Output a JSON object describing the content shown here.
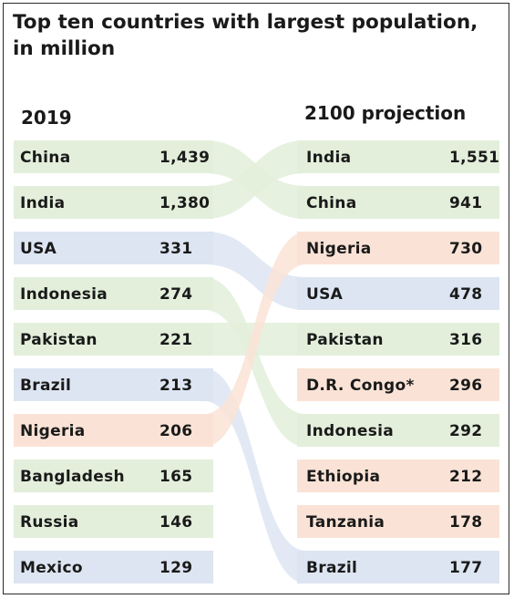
{
  "title": "Top ten countries with largest population, in million",
  "colors": {
    "green": "#e3efdb",
    "blue": "#dde5f2",
    "orange": "#fae3d6",
    "border": "#2b2b2b"
  },
  "chart_data": {
    "type": "bump",
    "title": "Top ten countries with largest population, in million",
    "unit": "million",
    "columns": [
      "2019",
      "2100 projection"
    ],
    "left": [
      {
        "country": "China",
        "value": 1439,
        "label": "1,439",
        "color": "green"
      },
      {
        "country": "India",
        "value": 1380,
        "label": "1,380",
        "color": "green"
      },
      {
        "country": "USA",
        "value": 331,
        "label": "331",
        "color": "blue"
      },
      {
        "country": "Indonesia",
        "value": 274,
        "label": "274",
        "color": "green"
      },
      {
        "country": "Pakistan",
        "value": 221,
        "label": "221",
        "color": "green"
      },
      {
        "country": "Brazil",
        "value": 213,
        "label": "213",
        "color": "blue"
      },
      {
        "country": "Nigeria",
        "value": 206,
        "label": "206",
        "color": "orange"
      },
      {
        "country": "Bangladesh",
        "value": 165,
        "label": "165",
        "color": "green"
      },
      {
        "country": "Russia",
        "value": 146,
        "label": "146",
        "color": "green"
      },
      {
        "country": "Mexico",
        "value": 129,
        "label": "129",
        "color": "blue"
      }
    ],
    "right": [
      {
        "country": "India",
        "value": 1551,
        "label": "1,551",
        "color": "green"
      },
      {
        "country": "China",
        "value": 941,
        "label": "941",
        "color": "green"
      },
      {
        "country": "Nigeria",
        "value": 730,
        "label": "730",
        "color": "orange"
      },
      {
        "country": "USA",
        "value": 478,
        "label": "478",
        "color": "blue"
      },
      {
        "country": "Pakistan",
        "value": 316,
        "label": "316",
        "color": "green"
      },
      {
        "country": "D.R. Congo*",
        "value": 296,
        "label": "296",
        "color": "orange"
      },
      {
        "country": "Indonesia",
        "value": 292,
        "label": "292",
        "color": "green"
      },
      {
        "country": "Ethiopia",
        "value": 212,
        "label": "212",
        "color": "orange"
      },
      {
        "country": "Tanzania",
        "value": 178,
        "label": "178",
        "color": "orange"
      },
      {
        "country": "Brazil",
        "value": 177,
        "label": "177",
        "color": "blue"
      }
    ],
    "links": [
      {
        "country": "China",
        "from_rank": 1,
        "to_rank": 2,
        "color": "green"
      },
      {
        "country": "India",
        "from_rank": 2,
        "to_rank": 1,
        "color": "green"
      },
      {
        "country": "USA",
        "from_rank": 3,
        "to_rank": 4,
        "color": "blue"
      },
      {
        "country": "Indonesia",
        "from_rank": 4,
        "to_rank": 7,
        "color": "green"
      },
      {
        "country": "Pakistan",
        "from_rank": 5,
        "to_rank": 5,
        "color": "green"
      },
      {
        "country": "Brazil",
        "from_rank": 6,
        "to_rank": 10,
        "color": "blue"
      },
      {
        "country": "Nigeria",
        "from_rank": 7,
        "to_rank": 3,
        "color": "orange"
      }
    ]
  }
}
